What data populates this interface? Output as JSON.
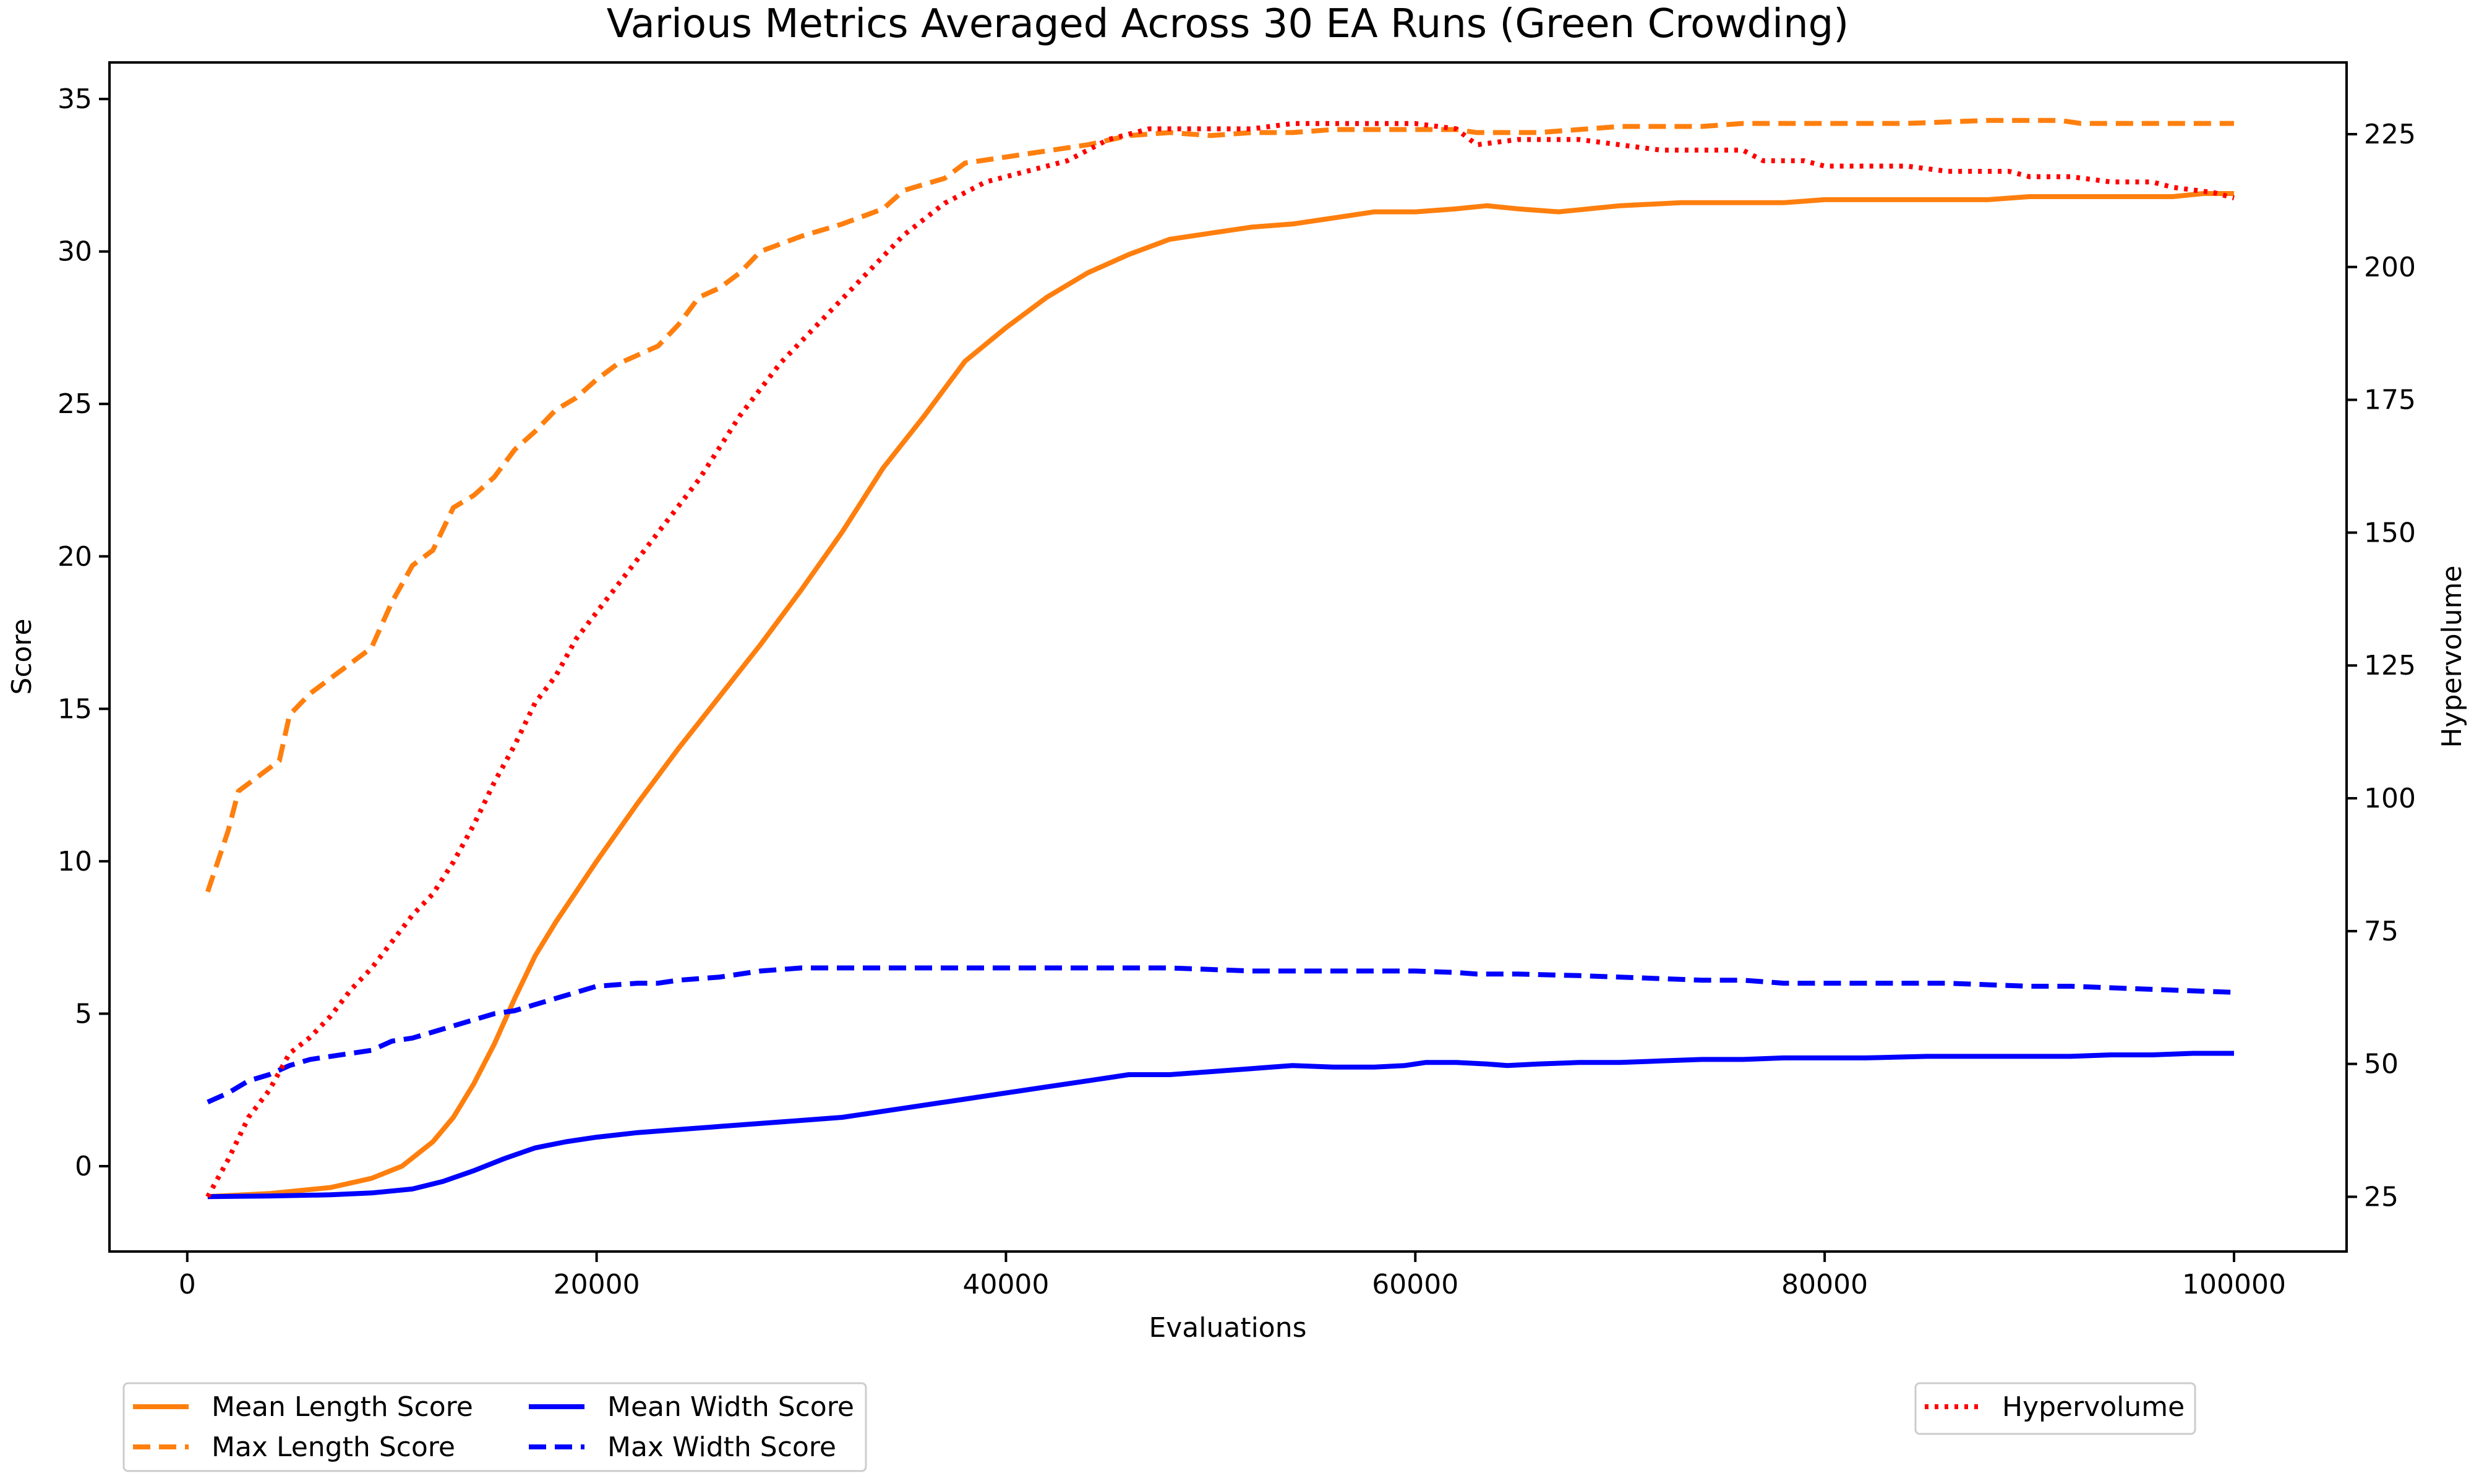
{
  "chart_data": {
    "type": "line",
    "title": "Various Metrics Averaged Across 30 EA Runs (Green Crowding)",
    "xlabel": "Evaluations",
    "ylabel": "Score",
    "y2label": "Hypervolume",
    "xlim": [
      -3800,
      105500
    ],
    "ylim": [
      -2.8,
      36.2
    ],
    "y2lim": [
      14.7,
      238.5
    ],
    "xticks": [
      0,
      20000,
      40000,
      60000,
      80000,
      100000
    ],
    "xtick_labels": [
      "0",
      "20000",
      "40000",
      "60000",
      "80000",
      "100000"
    ],
    "yticks": [
      0,
      5,
      10,
      15,
      20,
      25,
      30,
      35
    ],
    "ytick_labels": [
      "0",
      "5",
      "10",
      "15",
      "20",
      "25",
      "30",
      "35"
    ],
    "y2ticks": [
      25,
      50,
      75,
      100,
      125,
      150,
      175,
      200,
      225
    ],
    "y2tick_labels": [
      "25",
      "50",
      "75",
      "100",
      "125",
      "150",
      "175",
      "200",
      "225"
    ],
    "grid": false,
    "series": [
      {
        "name": "Mean Length Score",
        "axis": "left",
        "color": "#ff7f0e",
        "style": "solid",
        "x": [
          1000,
          4000,
          7000,
          9000,
          10500,
          12000,
          13000,
          14000,
          15000,
          16000,
          17000,
          18000,
          19000,
          20000,
          22000,
          24000,
          26000,
          28000,
          30000,
          32000,
          34000,
          36000,
          38000,
          40000,
          42000,
          44000,
          46000,
          48000,
          50000,
          52000,
          54000,
          56000,
          58000,
          60000,
          62000,
          63500,
          65000,
          67000,
          70000,
          73000,
          76000,
          78000,
          80000,
          82000,
          85000,
          88000,
          90000,
          92000,
          95000,
          97000,
          98500,
          100000
        ],
        "values": [
          -1.0,
          -0.9,
          -0.7,
          -0.4,
          0.0,
          0.8,
          1.6,
          2.7,
          4.0,
          5.5,
          6.9,
          8.0,
          9.0,
          10.0,
          11.9,
          13.7,
          15.4,
          17.1,
          18.9,
          20.8,
          22.9,
          24.6,
          26.4,
          27.5,
          28.5,
          29.3,
          29.9,
          30.4,
          30.6,
          30.8,
          30.9,
          31.1,
          31.3,
          31.3,
          31.4,
          31.5,
          31.4,
          31.3,
          31.5,
          31.6,
          31.6,
          31.6,
          31.7,
          31.7,
          31.7,
          31.7,
          31.8,
          31.8,
          31.8,
          31.8,
          31.9,
          31.9
        ]
      },
      {
        "name": "Max Length Score",
        "axis": "left",
        "color": "#ff7f0e",
        "style": "dashed",
        "x": [
          1000,
          2000,
          2500,
          3500,
          4500,
          5000,
          6000,
          7000,
          8000,
          9000,
          10000,
          11000,
          12000,
          13000,
          14000,
          15000,
          16000,
          17000,
          18000,
          19000,
          20000,
          21000,
          22000,
          23000,
          24000,
          25000,
          26000,
          27000,
          28000,
          30000,
          32000,
          34000,
          35000,
          36000,
          37000,
          38000,
          40000,
          42000,
          44000,
          46000,
          48000,
          50000,
          52000,
          54000,
          56000,
          58000,
          60000,
          62000,
          63000,
          66000,
          68000,
          70000,
          74000,
          76000,
          80000,
          84000,
          88000,
          90000,
          91500,
          92500,
          95000,
          100000
        ],
        "values": [
          9.0,
          11.0,
          12.3,
          12.8,
          13.3,
          14.8,
          15.5,
          16.0,
          16.5,
          17.0,
          18.5,
          19.7,
          20.2,
          21.6,
          22.0,
          22.6,
          23.5,
          24.1,
          24.8,
          25.2,
          25.8,
          26.3,
          26.6,
          26.9,
          27.6,
          28.5,
          28.8,
          29.3,
          30.0,
          30.5,
          30.9,
          31.4,
          32.0,
          32.2,
          32.4,
          32.9,
          33.1,
          33.3,
          33.5,
          33.8,
          33.9,
          33.8,
          33.9,
          33.9,
          34.0,
          34.0,
          34.0,
          34.0,
          33.9,
          33.9,
          34.0,
          34.1,
          34.1,
          34.2,
          34.2,
          34.2,
          34.3,
          34.3,
          34.3,
          34.2,
          34.2,
          34.2
        ]
      },
      {
        "name": "Mean Width Score",
        "axis": "left",
        "color": "#0000ff",
        "style": "solid",
        "x": [
          1000,
          4000,
          7000,
          9000,
          11000,
          12500,
          14000,
          15500,
          17000,
          18500,
          20000,
          22000,
          24000,
          26000,
          28000,
          30000,
          32000,
          34000,
          36000,
          37000,
          38000,
          40000,
          42000,
          44000,
          46000,
          48000,
          50000,
          52000,
          54000,
          56000,
          58000,
          59500,
          60500,
          62000,
          63500,
          64500,
          66000,
          68000,
          70000,
          72000,
          74000,
          76000,
          78000,
          80000,
          82000,
          85000,
          88000,
          90000,
          92000,
          94000,
          96000,
          98000,
          100000
        ],
        "values": [
          -1.0,
          -0.98,
          -0.94,
          -0.88,
          -0.75,
          -0.5,
          -0.15,
          0.25,
          0.6,
          0.8,
          0.95,
          1.1,
          1.2,
          1.3,
          1.4,
          1.5,
          1.6,
          1.8,
          2.0,
          2.1,
          2.2,
          2.4,
          2.6,
          2.8,
          3.0,
          3.0,
          3.1,
          3.2,
          3.3,
          3.25,
          3.25,
          3.3,
          3.4,
          3.4,
          3.35,
          3.3,
          3.35,
          3.4,
          3.4,
          3.45,
          3.5,
          3.5,
          3.55,
          3.55,
          3.55,
          3.6,
          3.6,
          3.6,
          3.6,
          3.65,
          3.65,
          3.7,
          3.7
        ]
      },
      {
        "name": "Max Width Score",
        "axis": "left",
        "color": "#0000ff",
        "style": "dashed",
        "x": [
          1000,
          2000,
          3000,
          4000,
          5000,
          6000,
          7000,
          8000,
          9000,
          10000,
          11000,
          12000,
          13000,
          14000,
          15000,
          16000,
          17000,
          18000,
          19000,
          20000,
          22000,
          23000,
          24000,
          26000,
          28000,
          30000,
          34000,
          38000,
          42000,
          46000,
          48000,
          50000,
          52000,
          56000,
          60000,
          62000,
          63000,
          65000,
          68000,
          70000,
          72000,
          74000,
          76000,
          78000,
          80000,
          82000,
          86000,
          88000,
          90000,
          92000,
          94000,
          96000,
          100000
        ],
        "values": [
          2.1,
          2.4,
          2.8,
          3.0,
          3.3,
          3.5,
          3.6,
          3.7,
          3.8,
          4.1,
          4.2,
          4.4,
          4.6,
          4.8,
          5.0,
          5.1,
          5.3,
          5.5,
          5.7,
          5.9,
          6.0,
          6.0,
          6.1,
          6.2,
          6.4,
          6.5,
          6.5,
          6.5,
          6.5,
          6.5,
          6.5,
          6.45,
          6.4,
          6.4,
          6.4,
          6.35,
          6.3,
          6.3,
          6.25,
          6.2,
          6.15,
          6.1,
          6.1,
          6.0,
          6.0,
          6.0,
          6.0,
          5.95,
          5.9,
          5.9,
          5.85,
          5.8,
          5.7
        ]
      },
      {
        "name": "Hypervolume",
        "axis": "right",
        "color": "#ff0000",
        "style": "dotted",
        "x": [
          1000,
          2000,
          3000,
          4000,
          5000,
          6000,
          7000,
          8000,
          9000,
          10000,
          11000,
          12000,
          13000,
          14000,
          15000,
          16000,
          17000,
          18000,
          19000,
          20000,
          21000,
          22000,
          23000,
          24000,
          25000,
          26000,
          27000,
          28000,
          29000,
          30000,
          31000,
          32000,
          33000,
          34000,
          35000,
          36000,
          37000,
          38000,
          39000,
          40000,
          41000,
          42000,
          43000,
          44000,
          45000,
          46000,
          47000,
          48000,
          49000,
          50000,
          51000,
          52000,
          54000,
          56000,
          58000,
          60000,
          62000,
          63000,
          65000,
          68000,
          70000,
          72000,
          74000,
          76000,
          77000,
          79000,
          80000,
          82000,
          84000,
          86000,
          88000,
          89000,
          90000,
          92000,
          94000,
          96000,
          97000,
          99000,
          100000
        ],
        "values": [
          25,
          32,
          40,
          45,
          52,
          55,
          59,
          64,
          68,
          73,
          78,
          82,
          88,
          95,
          103,
          110,
          118,
          123,
          130,
          135,
          140,
          145,
          150,
          155,
          160,
          166,
          172,
          177,
          182,
          186,
          190,
          194,
          198,
          202,
          206,
          209,
          212,
          214,
          216,
          217,
          218,
          219,
          220,
          222,
          224,
          225,
          226,
          226,
          226,
          226,
          226,
          226,
          227,
          227,
          227,
          227,
          226,
          223,
          224,
          224,
          223,
          222,
          222,
          222,
          220,
          220,
          219,
          219,
          219,
          218,
          218,
          218,
          217,
          217,
          216,
          216,
          215,
          214,
          213
        ]
      }
    ],
    "legend_left": {
      "placement": "bottom-left",
      "entries": [
        "Mean Length Score",
        "Max Length Score",
        "Mean Width Score",
        "Max Width Score"
      ]
    },
    "legend_right": {
      "placement": "bottom-right",
      "entries": [
        "Hypervolume"
      ]
    }
  }
}
